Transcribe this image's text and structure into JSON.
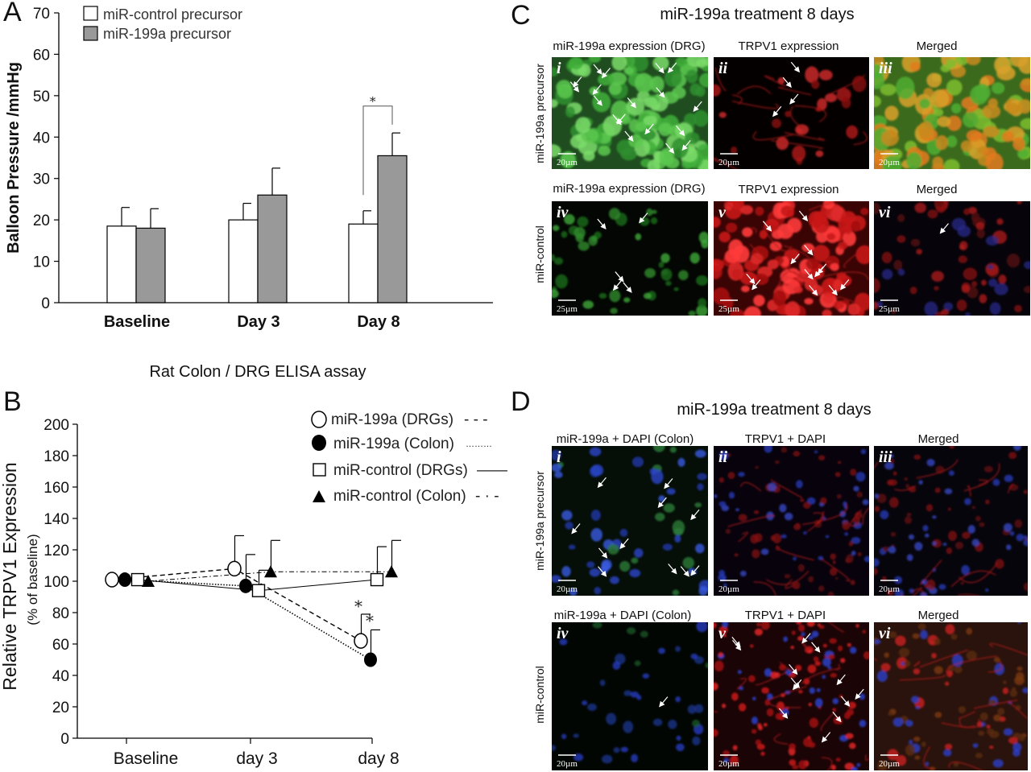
{
  "panel_labels": {
    "a": "A",
    "b": "B",
    "c": "C",
    "d": "D"
  },
  "chart_data": [
    {
      "panel": "A",
      "type": "bar",
      "categories": [
        "Baseline",
        "Day 3",
        "Day 8"
      ],
      "ylabel": "Balloon Pressure /mmHg",
      "ylim": [
        0,
        70
      ],
      "yticks": [
        0,
        10,
        20,
        30,
        40,
        50,
        60,
        70
      ],
      "grid": false,
      "legend_position": "top-left",
      "series": [
        {
          "name": "miR-control precursor",
          "color": "#ffffff",
          "values": [
            18.5,
            20,
            19
          ],
          "errors": [
            4.5,
            4,
            3.2
          ]
        },
        {
          "name": "miR-199a precursor",
          "color": "#999999",
          "values": [
            18,
            26,
            35.5
          ],
          "errors": [
            4.7,
            6.5,
            5.5
          ]
        }
      ],
      "significance": {
        "category": "Day 8",
        "marker": "*"
      }
    },
    {
      "panel": "B",
      "type": "line",
      "title": "Rat Colon / DRG ELISA assay",
      "categories": [
        "Baseline",
        "day 3",
        "day 8"
      ],
      "ylabel": "Relative  TRPV1  Expression",
      "ylabel2": "(% of baseline)",
      "ylim": [
        0,
        200
      ],
      "yticks": [
        0,
        20,
        40,
        60,
        80,
        100,
        120,
        140,
        160,
        180,
        200
      ],
      "grid": false,
      "legend_position": "top-right",
      "series": [
        {
          "name": "miR-199a (DRGs)",
          "line_key": "- - -",
          "marker": "open-circle",
          "values": [
            101,
            108,
            62
          ],
          "errors": [
            0,
            21,
            17
          ]
        },
        {
          "name": "miR-199a (Colon)",
          "line_key": "………",
          "marker": "filled-circle",
          "values": [
            101,
            97,
            50
          ],
          "errors": [
            0,
            20,
            19
          ]
        },
        {
          "name": "miR-control (DRGs)",
          "line_key": "——",
          "marker": "open-square",
          "values": [
            101,
            94,
            101
          ],
          "errors": [
            0,
            13,
            21
          ]
        },
        {
          "name": "miR-control (Colon)",
          "line_key": "- · -",
          "marker": "filled-triangle",
          "values": [
            100,
            106,
            106
          ],
          "errors": [
            0,
            20,
            20
          ]
        }
      ],
      "significance": [
        {
          "category": "day 8",
          "series": "miR-199a (DRGs)",
          "marker": "*"
        },
        {
          "category": "day 8",
          "series": "miR-199a (Colon)",
          "marker": "*"
        }
      ]
    }
  ],
  "panel_c": {
    "title": "miR-199a treatment 8 days",
    "col_headers": {
      "top": [
        "miR-199a expression (DRG)",
        "TRPV1 expression",
        "Merged"
      ],
      "bottom": [
        "miR-199a expression (DRG)",
        "TRPV1 expression",
        "Merged"
      ]
    },
    "row_labels": [
      "miR-199a precursor",
      "miR-control"
    ],
    "tiles": [
      "i",
      "ii",
      "iii",
      "iv",
      "v",
      "vi"
    ],
    "scale_bars": [
      "20µm",
      "20µm",
      "20µm",
      "25µm",
      "25µm",
      "25µm"
    ]
  },
  "panel_d": {
    "title": "miR-199a treatment  8 days",
    "col_headers": {
      "top": [
        "miR-199a + DAPI  (Colon)",
        "TRPV1 + DAPI",
        "Merged"
      ],
      "bottom": [
        "miR-199a + DAPI (Colon)",
        "TRPV1 + DAPI",
        "Merged"
      ]
    },
    "row_labels": [
      "miR-199a precursor",
      "miR-control"
    ],
    "tiles": [
      "i",
      "ii",
      "iii",
      "iv",
      "v",
      "vi"
    ],
    "scale_bars": [
      "20µm",
      "20µm",
      "20µm",
      "20µm",
      "20µm",
      "20µm"
    ]
  },
  "colors": {
    "green": "#2fae2f",
    "red": "#d41f1f",
    "blue": "#2a3fd6",
    "merge_orange": "#d98a1c",
    "bar_grey": "#999999"
  }
}
